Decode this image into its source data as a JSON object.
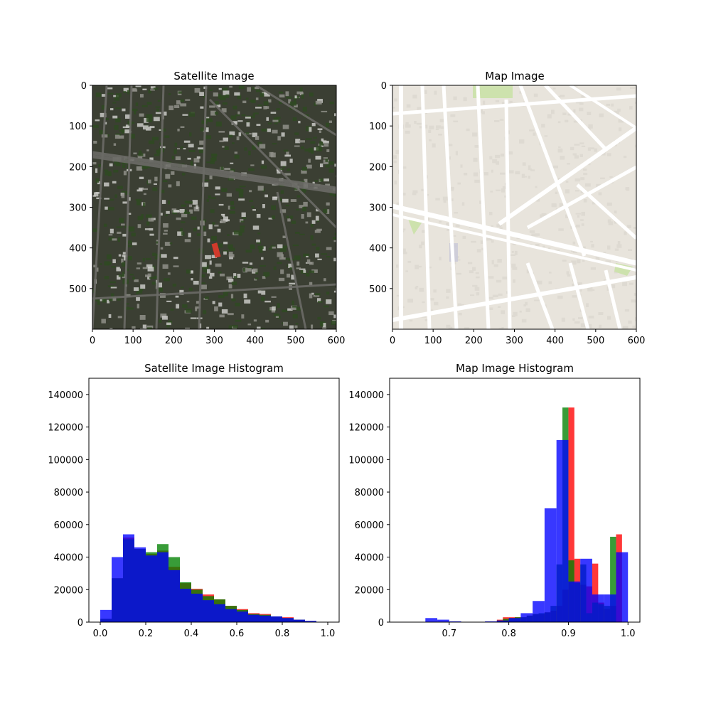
{
  "chart_data": [
    {
      "type": "image",
      "title": "Satellite Image",
      "xlim": [
        0,
        600
      ],
      "ylim": [
        600,
        0
      ],
      "xticks": [
        "0",
        "100",
        "200",
        "300",
        "400",
        "500",
        "600"
      ],
      "yticks": [
        "0",
        "100",
        "200",
        "300",
        "400",
        "500"
      ],
      "colors": {
        "base": "#3b3f33",
        "foliage": "#2f4a22",
        "roof": "#c9c9c6",
        "road": "#6b6b66",
        "highlight": "#d23a2c"
      }
    },
    {
      "type": "image",
      "title": "Map Image",
      "xlim": [
        0,
        600
      ],
      "ylim": [
        600,
        0
      ],
      "xticks": [
        "0",
        "100",
        "200",
        "300",
        "400",
        "500",
        "600"
      ],
      "yticks": [
        "0",
        "100",
        "200",
        "300",
        "400",
        "500"
      ],
      "colors": {
        "base": "#e8e4dc",
        "road": "#ffffff",
        "building": "#dedad2",
        "park": "#cde2ad"
      }
    },
    {
      "type": "bar",
      "title": "Satellite Image Histogram",
      "xlim": [
        -0.05,
        1.05
      ],
      "ylim": [
        0,
        150000
      ],
      "xticks": [
        0.0,
        0.2,
        0.4,
        0.6,
        0.8,
        1.0
      ],
      "xtick_labels": [
        "0.0",
        "0.2",
        "0.4",
        "0.6",
        "0.8",
        "1.0"
      ],
      "yticks": [
        0,
        20000,
        40000,
        60000,
        80000,
        100000,
        120000,
        140000
      ],
      "ytick_labels": [
        "0",
        "20000",
        "40000",
        "60000",
        "80000",
        "100000",
        "120000",
        "140000"
      ],
      "bin_edges": [
        0.0,
        0.05,
        0.1,
        0.15,
        0.2,
        0.25,
        0.3,
        0.35,
        0.4,
        0.45,
        0.5,
        0.55,
        0.6,
        0.65,
        0.7,
        0.75,
        0.8,
        0.85,
        0.9,
        0.95,
        1.0
      ],
      "series": [
        {
          "color": "#ff0000",
          "values": [
            2000,
            27000,
            52000,
            45000,
            42000,
            44000,
            34000,
            24000,
            20500,
            17000,
            14000,
            10000,
            8000,
            5500,
            5000,
            3500,
            3000,
            1500,
            500,
            0
          ]
        },
        {
          "color": "#008000",
          "values": [
            2000,
            27000,
            51000,
            45000,
            43000,
            48000,
            40000,
            24500,
            20000,
            16000,
            14000,
            10000,
            7500,
            5000,
            4500,
            3500,
            2500,
            1500,
            500,
            0
          ]
        },
        {
          "color": "#0000ff",
          "values": [
            7500,
            40000,
            54000,
            46000,
            41000,
            43000,
            32000,
            20500,
            17500,
            13500,
            11000,
            8000,
            6500,
            4500,
            4000,
            3500,
            2500,
            1500,
            800,
            0
          ]
        }
      ]
    },
    {
      "type": "bar",
      "title": "Map Image Histogram",
      "xlim": [
        0.6,
        1.02
      ],
      "ylim": [
        0,
        150000
      ],
      "xticks": [
        0.7,
        0.8,
        0.9,
        1.0
      ],
      "xtick_labels": [
        "0.7",
        "0.8",
        "0.9",
        "1.0"
      ],
      "yticks": [
        0,
        20000,
        40000,
        60000,
        80000,
        100000,
        120000,
        140000
      ],
      "ytick_labels": [
        "0",
        "20000",
        "40000",
        "60000",
        "80000",
        "100000",
        "120000",
        "140000"
      ],
      "series": [
        {
          "color": "#ff0000",
          "bin_edges": [
            0.78,
            0.79,
            0.8,
            0.81,
            0.82,
            0.83,
            0.84,
            0.85,
            0.86,
            0.87,
            0.88,
            0.89,
            0.9,
            0.91,
            0.92,
            0.93,
            0.94,
            0.95,
            0.96,
            0.97,
            0.98,
            0.99,
            1.0
          ],
          "values": [
            1500,
            3000,
            3000,
            3000,
            3000,
            4000,
            5000,
            5000,
            6000,
            7000,
            10000,
            20000,
            132000,
            39000,
            23000,
            22000,
            36000,
            12000,
            8000,
            10000,
            54000,
            0
          ]
        },
        {
          "color": "#008000",
          "bin_edges": [
            0.78,
            0.79,
            0.8,
            0.81,
            0.82,
            0.83,
            0.84,
            0.85,
            0.86,
            0.87,
            0.88,
            0.89,
            0.9,
            0.91,
            0.92,
            0.93,
            0.94,
            0.95,
            0.96,
            0.97,
            0.98,
            0.99,
            1.0
          ],
          "values": [
            1000,
            2000,
            2500,
            3000,
            3000,
            4000,
            5000,
            5500,
            6000,
            10000,
            35500,
            132000,
            38000,
            24000,
            35500,
            5500,
            12000,
            11000,
            10000,
            52500,
            0,
            0
          ]
        },
        {
          "color": "#0000ff",
          "bin_edges": [
            0.66,
            0.68,
            0.7,
            0.72,
            0.74,
            0.76,
            0.78,
            0.8,
            0.82,
            0.84,
            0.86,
            0.88,
            0.9,
            0.92,
            0.94,
            0.96,
            0.98,
            1.0
          ],
          "values": [
            2500,
            1500,
            500,
            0,
            0,
            500,
            1000,
            2500,
            5500,
            13000,
            70000,
            112000,
            25000,
            39000,
            17000,
            17000,
            43000
          ]
        }
      ]
    }
  ]
}
